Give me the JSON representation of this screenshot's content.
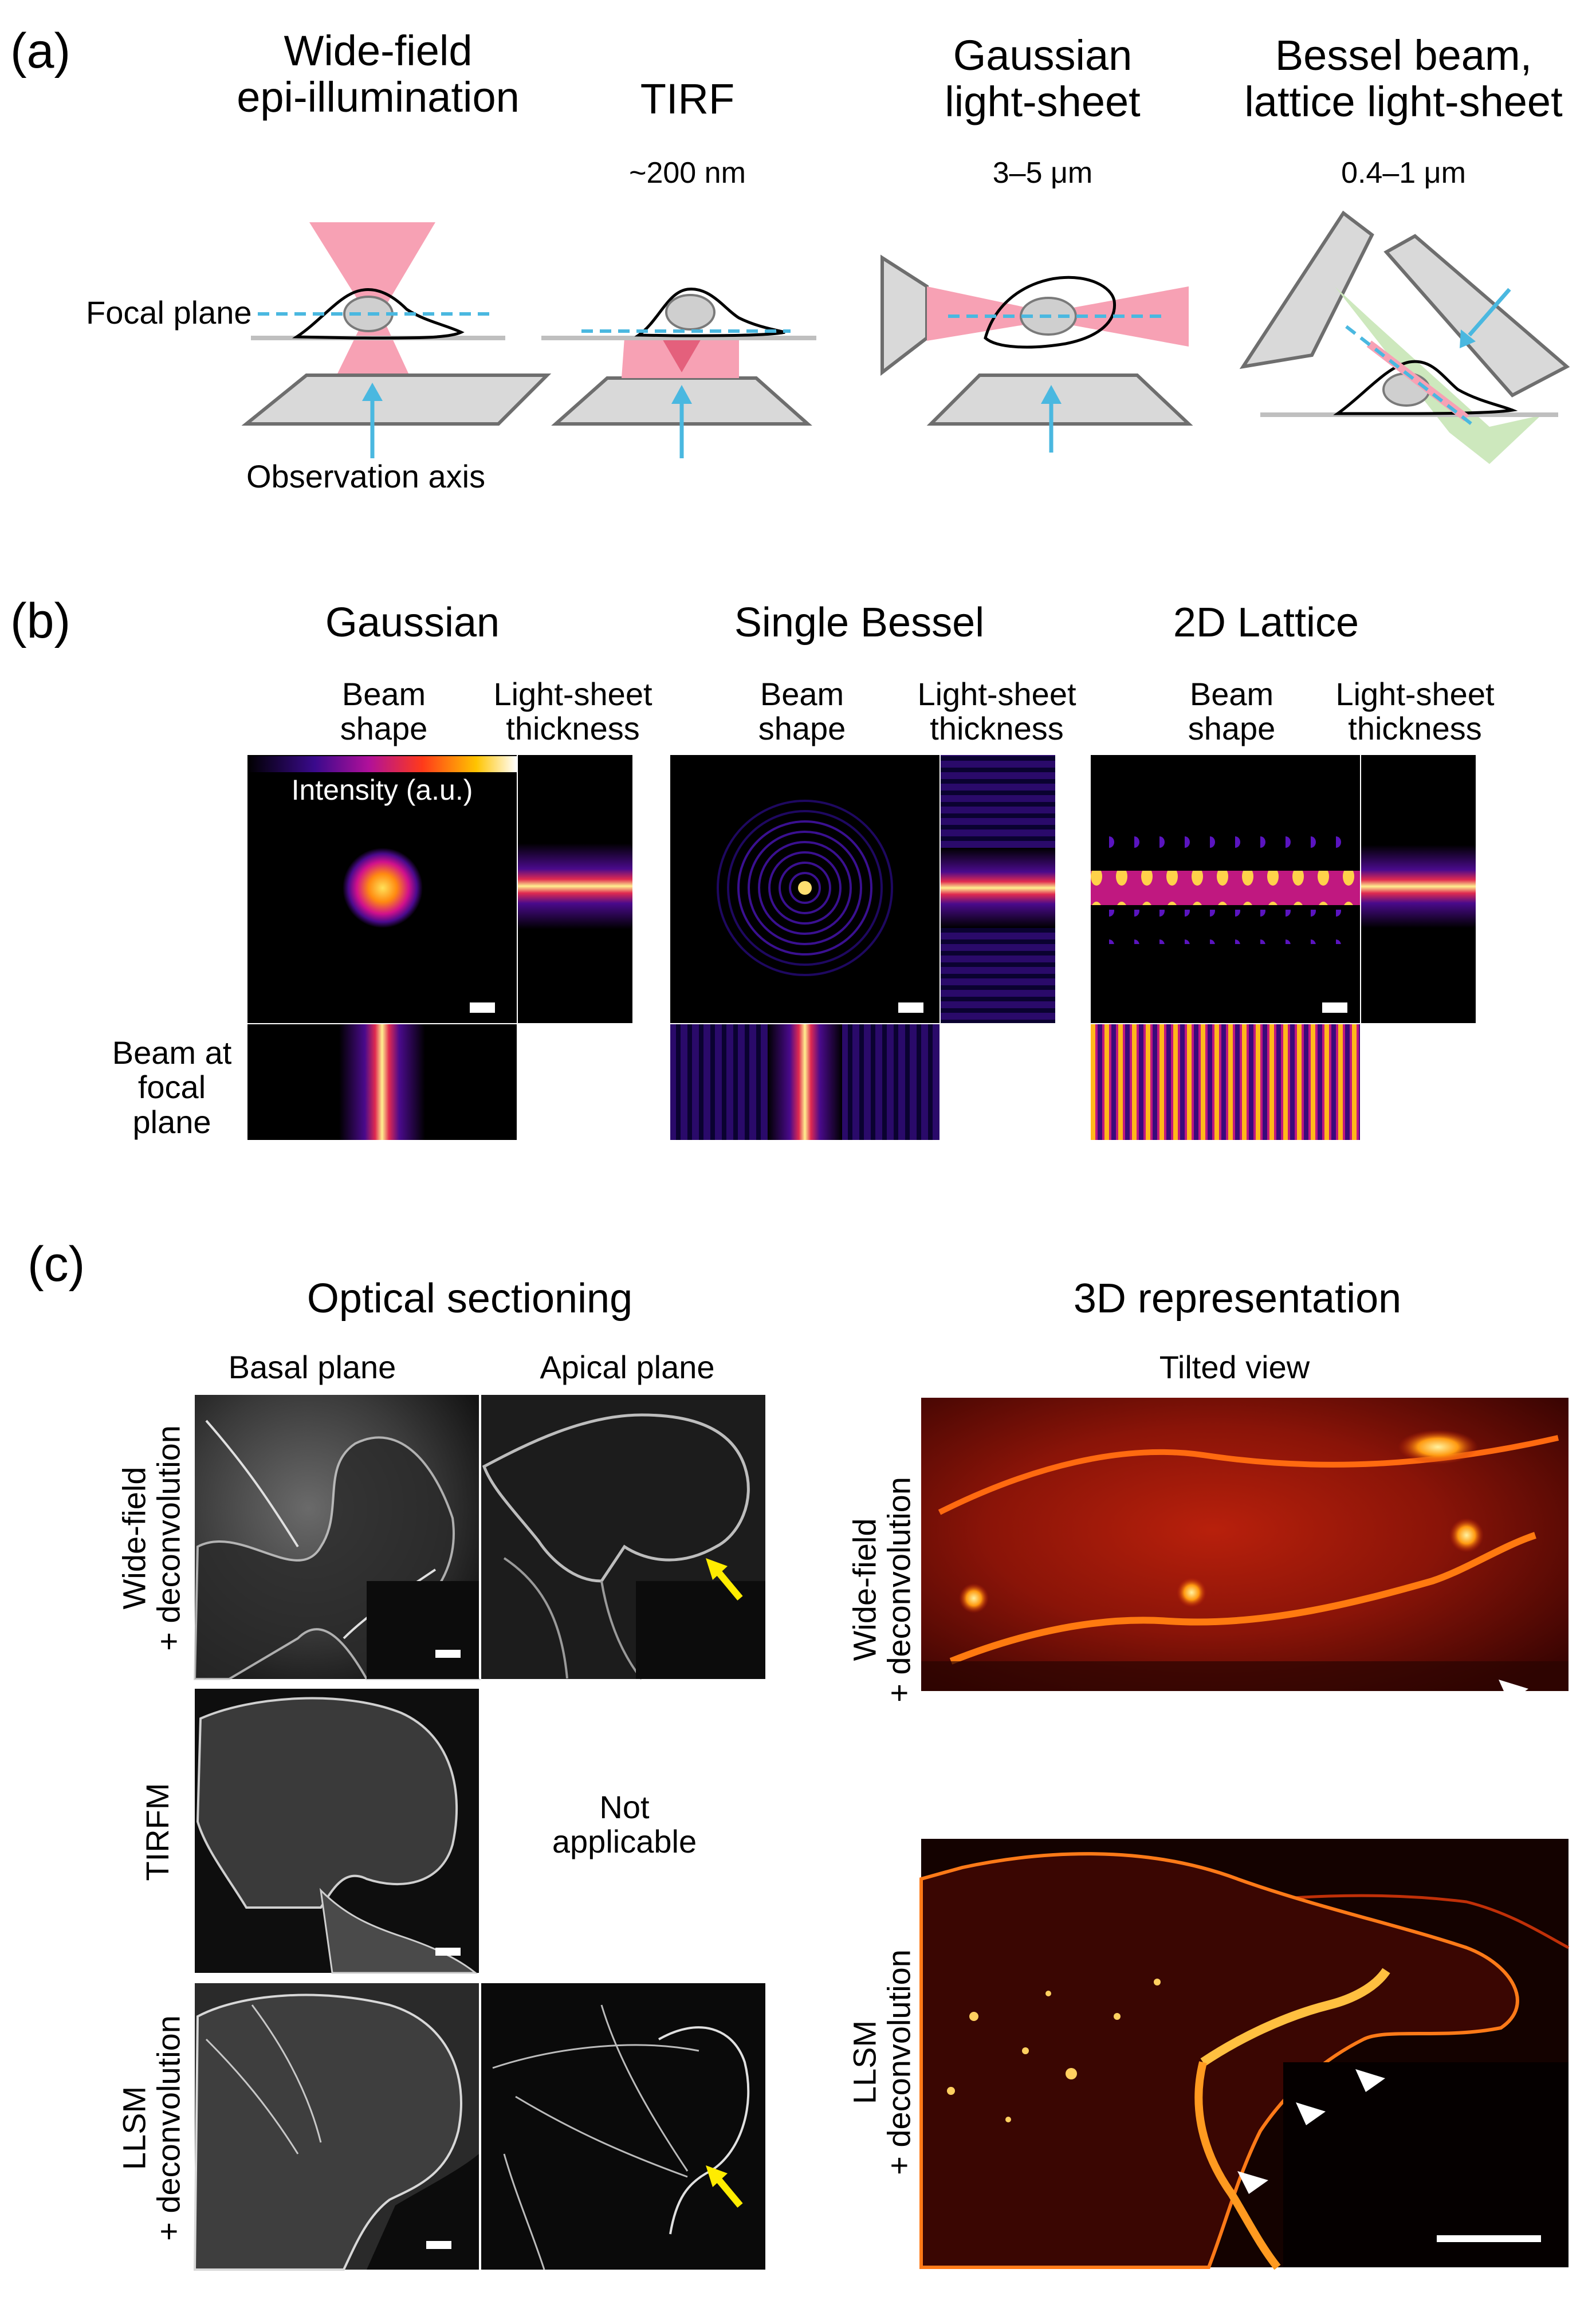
{
  "panel_a": {
    "letter": "(a)",
    "widefield_title": [
      "Wide-field",
      "epi-illumination"
    ],
    "tirf_title": "TIRF",
    "tirf_depth": "~200 nm",
    "gaussian_title": [
      "Gaussian",
      "light-sheet"
    ],
    "gaussian_depth": "3–5 μm",
    "bessel_title": [
      "Bessel beam,",
      "lattice light-sheet"
    ],
    "bessel_depth": "0.4–1 μm",
    "focal_plane_label": "Focal plane",
    "observation_axis_label": "Observation axis"
  },
  "panel_b": {
    "letter": "(b)",
    "gaussian_title": "Gaussian",
    "bessel_title": "Single Bessel",
    "lattice_title": "2D Lattice",
    "beam_shape": [
      "Beam",
      "shape"
    ],
    "sheet_thickness": [
      "Light-sheet",
      "thickness"
    ],
    "intensity_label": "Intensity (a.u.)",
    "beam_focal_label": [
      "Beam at",
      "focal",
      "plane"
    ]
  },
  "panel_c": {
    "letter": "(c)",
    "optical_title": "Optical sectioning",
    "repr_title": "3D representation",
    "basal_label": "Basal plane",
    "apical_label": "Apical plane",
    "tilted_label": "Tilted view",
    "row_widefield": [
      "Wide-field",
      "+ deconvolution"
    ],
    "row_tirfm": "TIRFM",
    "row_llsm": [
      "LLSM",
      "+ deconvolution"
    ],
    "not_applicable": [
      "Not",
      "applicable"
    ]
  },
  "colors": {
    "sheet_red": "#f7a1b4",
    "dash_blue": "#4ab8e0",
    "lattice_green": "#cde8bd",
    "arrow_yellow": "#ffec00"
  }
}
